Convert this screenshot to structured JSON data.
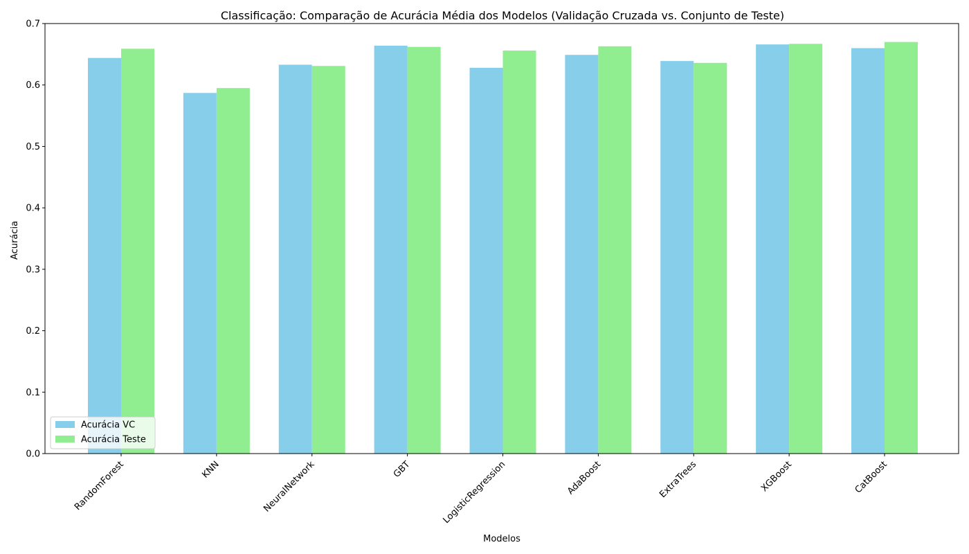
{
  "chart_data": {
    "type": "bar",
    "title": "Classificação: Comparação de Acurácia Média dos Modelos (Validação Cruzada vs. Conjunto de Teste)",
    "xlabel": "Modelos",
    "ylabel": "Acurácia",
    "categories": [
      "RandomForest",
      "KNN",
      "NeuralNetwork",
      "GBT",
      "LogisticRegression",
      "AdaBoost",
      "ExtraTrees",
      "XGBoost",
      "CatBoost"
    ],
    "series": [
      {
        "name": "Acurácia VC",
        "color": "#87ceeb",
        "values": [
          0.644,
          0.587,
          0.633,
          0.664,
          0.628,
          0.649,
          0.639,
          0.666,
          0.66
        ]
      },
      {
        "name": "Acurácia Teste",
        "color": "#90ee90",
        "values": [
          0.659,
          0.595,
          0.631,
          0.662,
          0.656,
          0.663,
          0.636,
          0.667,
          0.67
        ]
      }
    ],
    "ylim": [
      0,
      0.7
    ],
    "yticks": [
      "0.0",
      "0.1",
      "0.2",
      "0.3",
      "0.4",
      "0.5",
      "0.6",
      "0.7"
    ],
    "grid": false,
    "legend_position": "lower-left"
  }
}
